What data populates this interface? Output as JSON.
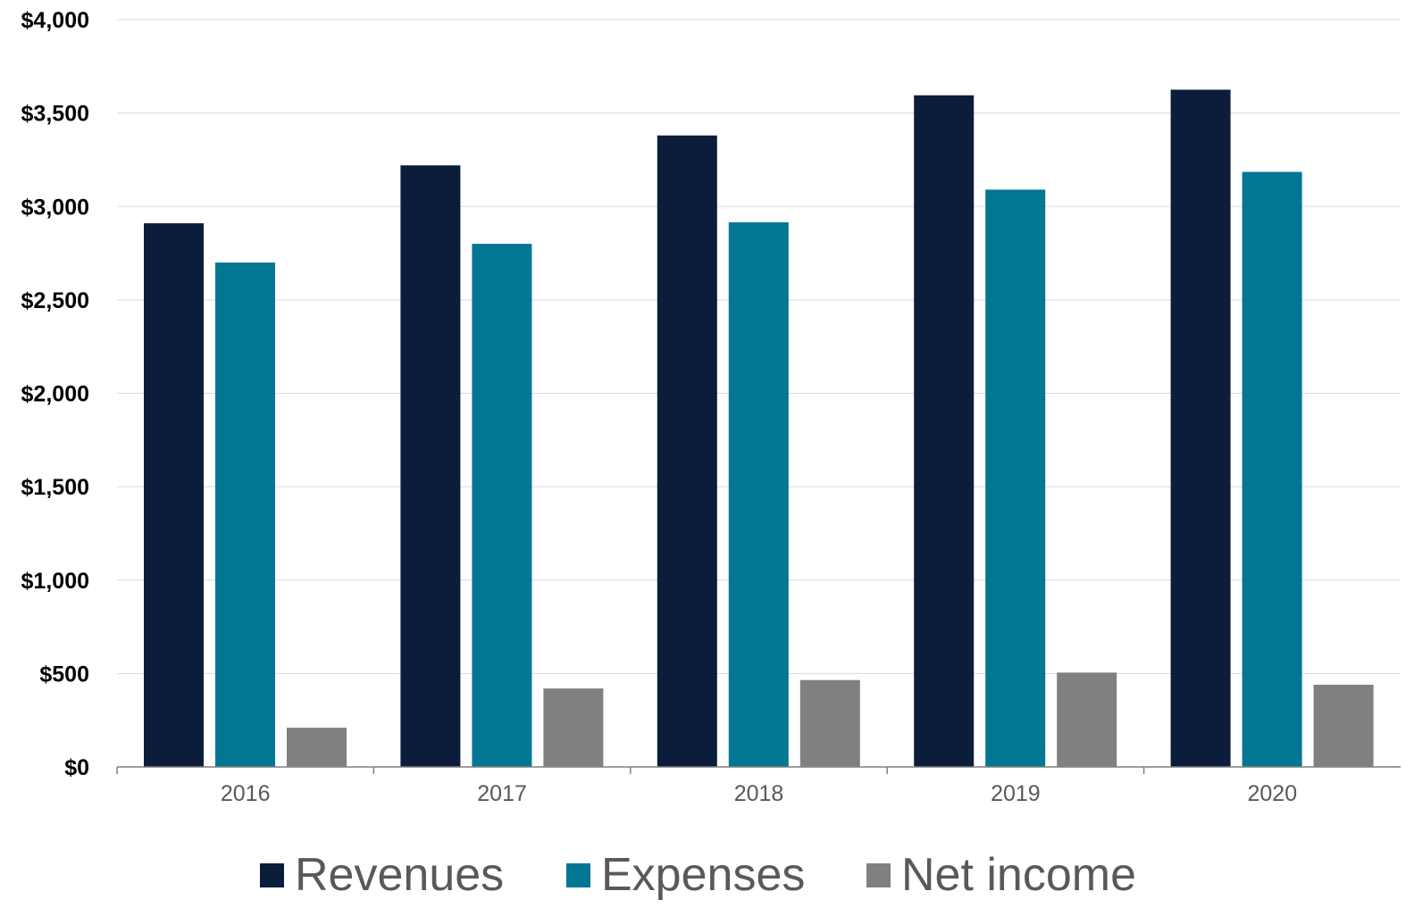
{
  "chart_data": {
    "type": "bar",
    "title": "",
    "xlabel": "",
    "ylabel": "",
    "categories": [
      "2016",
      "2017",
      "2018",
      "2019",
      "2020"
    ],
    "series": [
      {
        "name": "Revenues",
        "color": "#0b1d3a",
        "values": [
          2910,
          3220,
          3380,
          3595,
          3625
        ]
      },
      {
        "name": "Expenses",
        "color": "#027693",
        "values": [
          2700,
          2800,
          2915,
          3090,
          3185
        ]
      },
      {
        "name": "Net income",
        "color": "#808080",
        "values": [
          210,
          420,
          465,
          505,
          440
        ]
      }
    ],
    "ylim": [
      0,
      4000
    ],
    "yticks": [
      0,
      500,
      1000,
      1500,
      2000,
      2500,
      3000,
      3500,
      4000
    ],
    "ytick_labels": [
      "$0",
      "$500",
      "$1,000",
      "$1,500",
      "$2,000",
      "$2,500",
      "$3,000",
      "$3,500",
      "$4,000"
    ],
    "grid": true,
    "legend_position": "bottom"
  }
}
